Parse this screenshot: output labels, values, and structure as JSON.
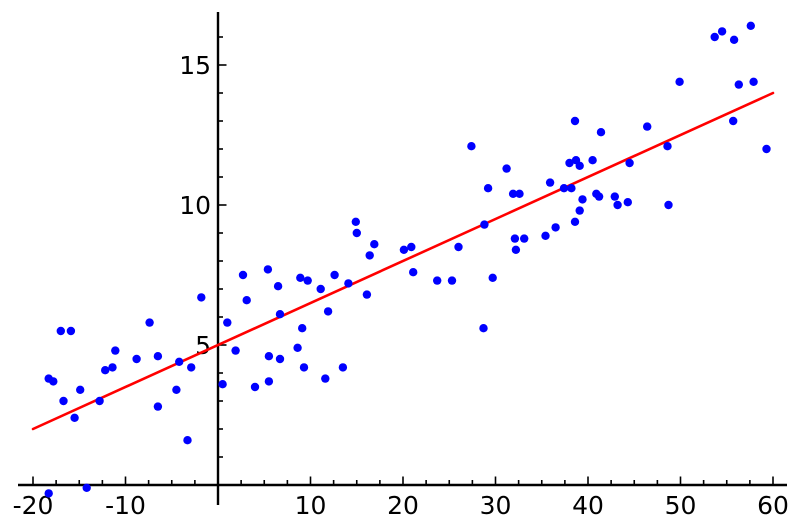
{
  "figure": {
    "background": "#ffffff",
    "title": ""
  },
  "chart_data": {
    "type": "scatter",
    "title": "",
    "xlabel": "",
    "ylabel": "",
    "grid": false,
    "legend": false,
    "axis_color": "#000000",
    "x_axis": {
      "range": [
        -21.6,
        61.5
      ],
      "major_ticks": [
        -20,
        -10,
        10,
        20,
        30,
        40,
        50,
        60
      ],
      "major_tick_labels": [
        "-20",
        "-10",
        "10",
        "20",
        "30",
        "40",
        "50",
        "60"
      ],
      "minor_tick_step": 2.5
    },
    "y_axis": {
      "range": [
        -0.75,
        16.9
      ],
      "major_ticks": [
        5,
        10,
        15
      ],
      "major_tick_labels": [
        "5",
        "10",
        "15"
      ],
      "minor_tick_step": 1
    },
    "series": [
      {
        "name": "data-points",
        "type": "scatter",
        "marker": "circle",
        "color": "#0000ff",
        "points": [
          [
            -18.3,
            -0.3
          ],
          [
            -14.2,
            -0.1
          ],
          [
            -18.3,
            3.8
          ],
          [
            -17.8,
            3.7
          ],
          [
            -17.0,
            5.5
          ],
          [
            -15.9,
            5.5
          ],
          [
            -16.7,
            3.0
          ],
          [
            -15.5,
            2.4
          ],
          [
            -14.9,
            3.4
          ],
          [
            -12.8,
            3.0
          ],
          [
            -12.2,
            4.1
          ],
          [
            -11.4,
            4.2
          ],
          [
            -11.1,
            4.8
          ],
          [
            -8.8,
            4.5
          ],
          [
            -7.4,
            5.8
          ],
          [
            -6.5,
            4.6
          ],
          [
            -6.5,
            2.8
          ],
          [
            -4.5,
            3.4
          ],
          [
            -4.2,
            4.4
          ],
          [
            -2.9,
            4.2
          ],
          [
            -3.3,
            1.6
          ],
          [
            -1.8,
            6.7
          ],
          [
            0.5,
            3.6
          ],
          [
            1.0,
            5.8
          ],
          [
            1.9,
            4.8
          ],
          [
            2.7,
            7.5
          ],
          [
            3.1,
            6.6
          ],
          [
            4.0,
            3.5
          ],
          [
            5.4,
            7.7
          ],
          [
            5.5,
            4.6
          ],
          [
            5.5,
            3.7
          ],
          [
            6.5,
            7.1
          ],
          [
            6.7,
            6.1
          ],
          [
            6.7,
            4.5
          ],
          [
            8.6,
            4.9
          ],
          [
            8.9,
            7.4
          ],
          [
            9.1,
            5.6
          ],
          [
            9.3,
            4.2
          ],
          [
            9.7,
            7.3
          ],
          [
            11.1,
            7.0
          ],
          [
            11.6,
            3.8
          ],
          [
            11.9,
            6.2
          ],
          [
            12.6,
            7.5
          ],
          [
            13.5,
            4.2
          ],
          [
            14.1,
            7.2
          ],
          [
            14.9,
            9.4
          ],
          [
            15.0,
            9.0
          ],
          [
            16.1,
            6.8
          ],
          [
            16.4,
            8.2
          ],
          [
            16.9,
            8.6
          ],
          [
            20.1,
            8.4
          ],
          [
            20.9,
            8.5
          ],
          [
            21.1,
            7.6
          ],
          [
            23.7,
            7.3
          ],
          [
            25.3,
            7.3
          ],
          [
            26.0,
            8.5
          ],
          [
            27.4,
            12.1
          ],
          [
            28.7,
            5.6
          ],
          [
            28.8,
            9.3
          ],
          [
            29.2,
            10.6
          ],
          [
            29.7,
            7.4
          ],
          [
            31.2,
            11.3
          ],
          [
            31.9,
            10.4
          ],
          [
            32.1,
            8.8
          ],
          [
            32.2,
            8.4
          ],
          [
            32.6,
            10.4
          ],
          [
            33.1,
            8.8
          ],
          [
            35.4,
            8.9
          ],
          [
            35.9,
            10.8
          ],
          [
            36.5,
            9.2
          ],
          [
            37.4,
            10.6
          ],
          [
            38.0,
            11.5
          ],
          [
            38.2,
            10.6
          ],
          [
            38.6,
            13.0
          ],
          [
            38.6,
            9.4
          ],
          [
            38.7,
            11.6
          ],
          [
            39.1,
            11.4
          ],
          [
            39.1,
            9.8
          ],
          [
            39.4,
            10.2
          ],
          [
            40.5,
            11.6
          ],
          [
            40.9,
            10.4
          ],
          [
            41.2,
            10.3
          ],
          [
            41.4,
            12.6
          ],
          [
            42.9,
            10.3
          ],
          [
            43.2,
            10.0
          ],
          [
            44.3,
            10.1
          ],
          [
            44.5,
            11.5
          ],
          [
            46.4,
            12.8
          ],
          [
            48.6,
            12.1
          ],
          [
            48.7,
            10.0
          ],
          [
            49.9,
            14.4
          ],
          [
            53.7,
            16.0
          ],
          [
            54.5,
            16.2
          ],
          [
            55.7,
            13.0
          ],
          [
            55.8,
            15.9
          ],
          [
            56.3,
            14.3
          ],
          [
            57.6,
            16.4
          ],
          [
            57.9,
            14.4
          ],
          [
            59.3,
            12.0
          ]
        ]
      },
      {
        "name": "fit-line",
        "type": "line",
        "color": "#ff0000",
        "slope": 0.15,
        "intercept": 5.0,
        "endpoints": [
          [
            -20,
            2.0
          ],
          [
            60,
            14.0
          ]
        ]
      }
    ]
  }
}
